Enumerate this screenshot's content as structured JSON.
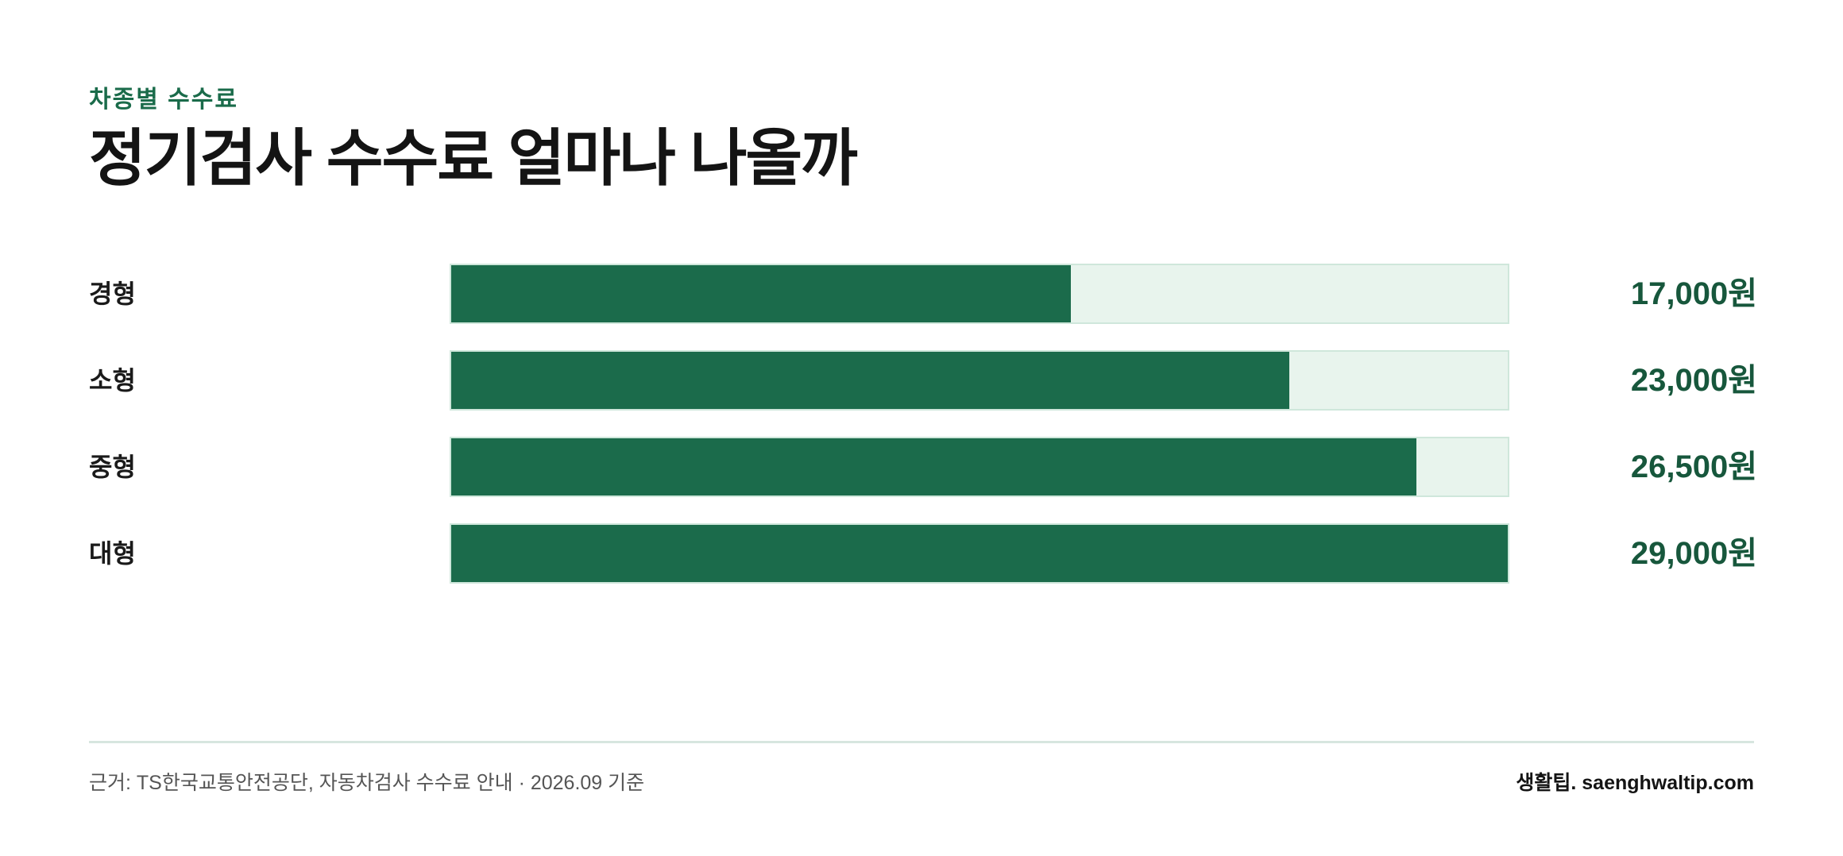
{
  "eyebrow": "차종별 수수료",
  "title": "정기검사 수수료 얼마나 나올까",
  "chart_data": {
    "type": "bar",
    "orientation": "horizontal",
    "categories": [
      "경형",
      "소형",
      "중형",
      "대형"
    ],
    "values": [
      17000,
      23000,
      26500,
      29000
    ],
    "value_labels": [
      "17,000원",
      "23,000원",
      "26,500원",
      "29,000원"
    ],
    "xlim": [
      0,
      29000
    ],
    "colors": {
      "fill": "#1b6b4b",
      "track": "#e8f4ed",
      "accent": "#1a6b4a"
    }
  },
  "footer": {
    "source": "근거: TS한국교통안전공단, 자동차검사 수수료 안내 · 2026.09 기준",
    "brand": "생활팁. saenghwaltip.com"
  }
}
